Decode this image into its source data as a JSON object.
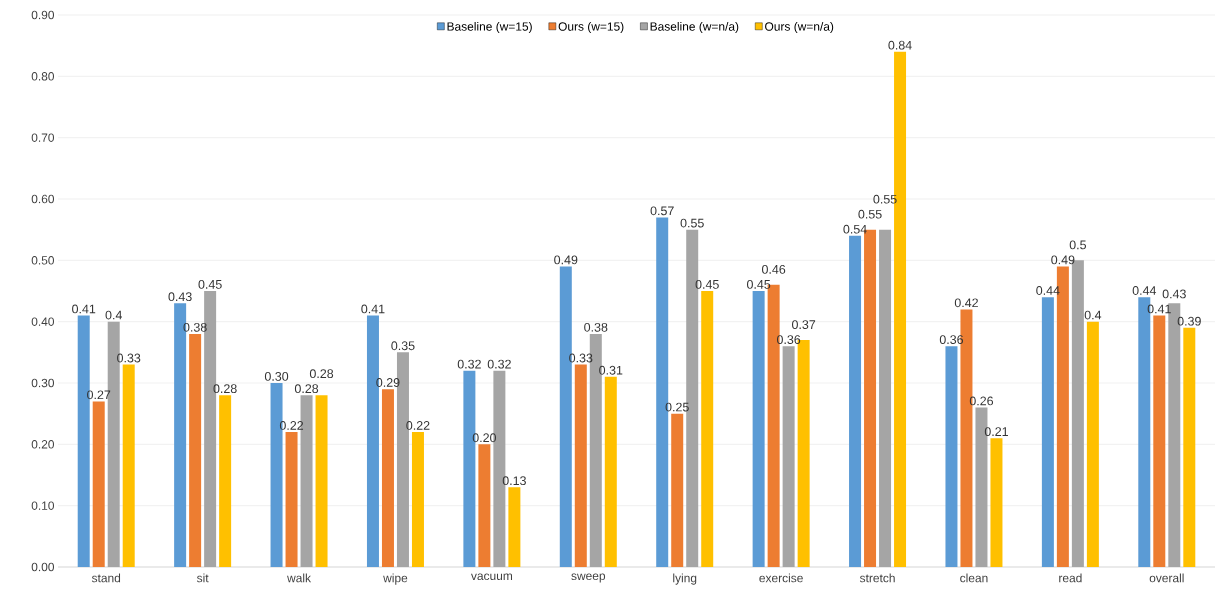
{
  "chart_data": {
    "type": "bar",
    "categories": [
      "stand",
      "sit",
      "walk",
      "wipe",
      "vacuum",
      "sweep",
      "lying",
      "exercise",
      "stretch",
      "clean",
      "read",
      "overall"
    ],
    "series": [
      {
        "name": "Baseline (w=15)",
        "color": "#5b9bd5",
        "values": [
          0.41,
          0.43,
          0.3,
          0.41,
          0.32,
          0.49,
          0.57,
          0.45,
          0.54,
          0.36,
          0.44,
          0.44
        ],
        "value_labels": [
          "0.41",
          "0.43",
          "0.30",
          "0.41",
          "0.32",
          "0.49",
          "0.57",
          "0.45",
          "0.54",
          "0.36",
          "0.44",
          "0.44"
        ]
      },
      {
        "name": "Ours (w=15)",
        "color": "#ed7d31",
        "values": [
          0.27,
          0.38,
          0.22,
          0.29,
          0.2,
          0.33,
          0.25,
          0.46,
          0.55,
          0.42,
          0.49,
          0.41
        ],
        "value_labels": [
          "0.27",
          "0.38",
          "0.22",
          "0.29",
          "0.20",
          "0.33",
          "0.25",
          "0.46",
          "0.55",
          "0.42",
          "0.49",
          "0.41"
        ]
      },
      {
        "name": "Baseline (w=n/a)",
        "color": "#a5a5a5",
        "values": [
          0.4,
          0.45,
          0.28,
          0.35,
          0.32,
          0.38,
          0.55,
          0.36,
          0.55,
          0.26,
          0.5,
          0.43
        ],
        "value_labels": [
          "0.4",
          "0.45",
          "0.28",
          "0.35",
          "0.32",
          "0.38",
          "0.55",
          "0.36",
          "0.55",
          "0.26",
          "0.5",
          "0.43"
        ]
      },
      {
        "name": "Ours (w=n/a)",
        "color": "#ffc000",
        "values": [
          0.33,
          0.28,
          0.28,
          0.22,
          0.13,
          0.31,
          0.45,
          0.37,
          0.84,
          0.21,
          0.4,
          0.39
        ],
        "value_labels": [
          "0.33",
          "0.28",
          "0.28",
          "0.22",
          "0.13",
          "0.31",
          "0.45",
          "0.37",
          "0.84",
          "0.21",
          "0.4",
          "0.39"
        ]
      }
    ],
    "ylim": [
      0,
      0.9
    ],
    "yticks": [
      {
        "value": 0,
        "label": "0.00"
      },
      {
        "value": 0.1,
        "label": "0.10"
      },
      {
        "value": 0.2,
        "label": "0.20"
      },
      {
        "value": 0.3,
        "label": "0.30"
      },
      {
        "value": 0.4,
        "label": "0.40"
      },
      {
        "value": 0.5,
        "label": "0.50"
      },
      {
        "value": 0.6,
        "label": "0.60"
      },
      {
        "value": 0.7,
        "label": "0.70"
      },
      {
        "value": 0.8,
        "label": "0.80"
      },
      {
        "value": 0.9,
        "label": "0.90"
      }
    ],
    "grid": "y",
    "legend": "top"
  }
}
